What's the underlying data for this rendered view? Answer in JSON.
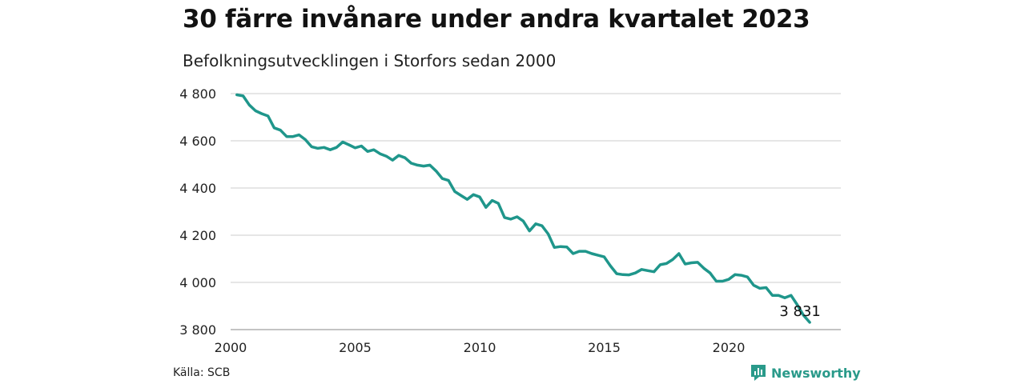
{
  "header": {
    "title": "30 färre invånare under andra kvartalet 2023",
    "subtitle": "Befolkningsutvecklingen i Storfors sedan 2000"
  },
  "footer": {
    "source": "Källa: SCB",
    "brand": "Newsworthy"
  },
  "colors": {
    "line": "#1f968b",
    "grid": "#dddddd",
    "brand": "#2a9a8a"
  },
  "chart_data": {
    "type": "line",
    "title": "30 färre invånare under andra kvartalet 2023",
    "subtitle": "Befolkningsutvecklingen i Storfors sedan 2000",
    "xlabel": "",
    "ylabel": "",
    "xlim": [
      2000,
      2024.5
    ],
    "ylim": [
      3800,
      4800
    ],
    "x_ticks": [
      2000,
      2005,
      2010,
      2015,
      2020
    ],
    "x_tick_labels": [
      "2000",
      "2005",
      "2010",
      "2015",
      "2020"
    ],
    "y_ticks": [
      3800,
      4000,
      4200,
      4400,
      4600,
      4800
    ],
    "y_tick_labels": [
      "3 800",
      "4 000",
      "4 200",
      "4 400",
      "4 600",
      "4 800"
    ],
    "grid": "horizontal",
    "annotation": {
      "x": 2023.25,
      "y": 3831,
      "label": "3 831"
    },
    "series": [
      {
        "x": [
          2000.25,
          2000.5,
          2000.75,
          2001.0,
          2001.25,
          2001.5,
          2001.75,
          2002.0,
          2002.25,
          2002.5,
          2002.75,
          2003.0,
          2003.25,
          2003.5,
          2003.75,
          2004.0,
          2004.25,
          2004.5,
          2004.75,
          2005.0,
          2005.25,
          2005.5,
          2005.75,
          2006.0,
          2006.25,
          2006.5,
          2006.75,
          2007.0,
          2007.25,
          2007.5,
          2007.75,
          2008.0,
          2008.25,
          2008.5,
          2008.75,
          2009.0,
          2009.25,
          2009.5,
          2009.75,
          2010.0,
          2010.25,
          2010.5,
          2010.75,
          2011.0,
          2011.25,
          2011.5,
          2011.75,
          2012.0,
          2012.25,
          2012.5,
          2012.75,
          2013.0,
          2013.25,
          2013.5,
          2013.75,
          2014.0,
          2014.25,
          2014.5,
          2014.75,
          2015.0,
          2015.25,
          2015.5,
          2015.75,
          2016.0,
          2016.25,
          2016.5,
          2016.75,
          2017.0,
          2017.25,
          2017.5,
          2017.75,
          2018.0,
          2018.25,
          2018.5,
          2018.75,
          2019.0,
          2019.25,
          2019.5,
          2019.75,
          2020.0,
          2020.25,
          2020.5,
          2020.75,
          2021.0,
          2021.25,
          2021.5,
          2021.75,
          2022.0,
          2022.25,
          2022.5,
          2022.75,
          2023.0,
          2023.25
        ],
        "values": [
          4795,
          4790,
          4752,
          4727,
          4715,
          4705,
          4655,
          4645,
          4618,
          4618,
          4625,
          4605,
          4575,
          4568,
          4572,
          4562,
          4572,
          4595,
          4583,
          4570,
          4578,
          4555,
          4562,
          4545,
          4535,
          4518,
          4538,
          4528,
          4505,
          4497,
          4493,
          4497,
          4472,
          4440,
          4432,
          4385,
          4368,
          4352,
          4372,
          4362,
          4318,
          4347,
          4335,
          4275,
          4268,
          4278,
          4260,
          4218,
          4248,
          4240,
          4205,
          4148,
          4152,
          4150,
          4122,
          4132,
          4132,
          4122,
          4115,
          4108,
          4070,
          4037,
          4033,
          4032,
          4040,
          4055,
          4050,
          4045,
          4075,
          4080,
          4097,
          4122,
          4078,
          4083,
          4085,
          4060,
          4040,
          4005,
          4005,
          4013,
          4033,
          4030,
          4023,
          3988,
          3975,
          3978,
          3945,
          3945,
          3935,
          3945,
          3905,
          3861,
          3831
        ]
      }
    ]
  }
}
